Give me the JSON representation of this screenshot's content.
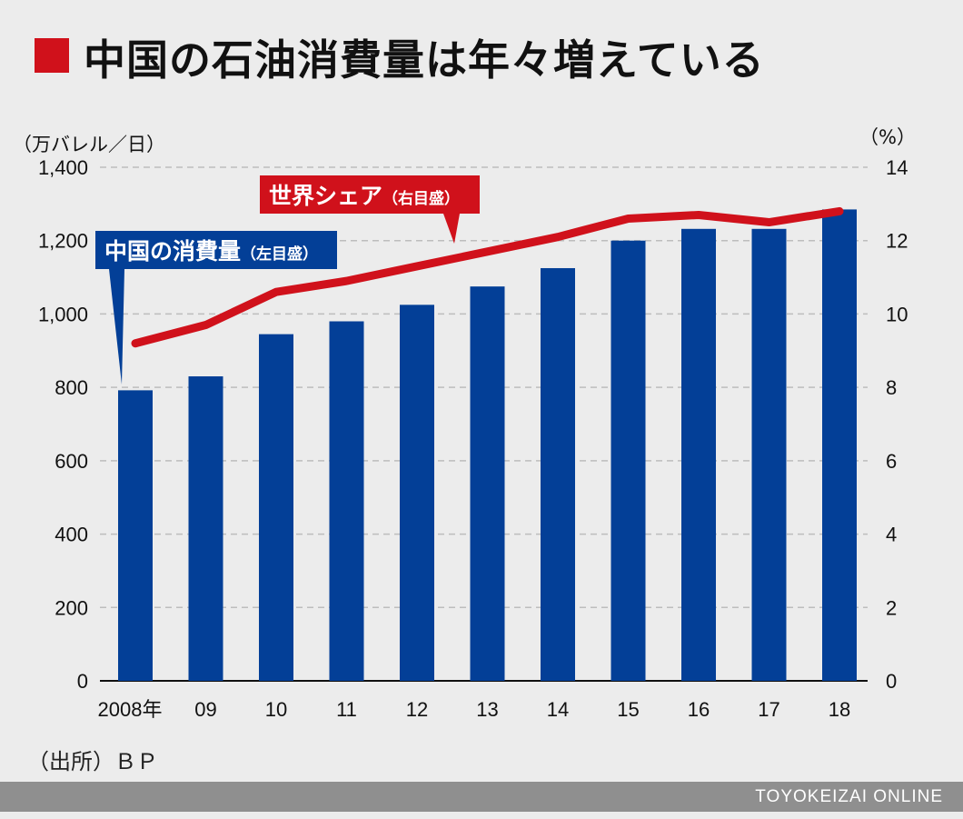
{
  "title": "中国の石油消費量は年々増えている",
  "colors": {
    "bar": "#033f97",
    "line": "#d0111b",
    "title_square": "#d0111b",
    "grid": "#bdbdbd"
  },
  "chart_data": {
    "type": "bar+line",
    "categories": [
      "2008年",
      "09",
      "10",
      "11",
      "12",
      "13",
      "14",
      "15",
      "16",
      "17",
      "18"
    ],
    "left_axis": {
      "unit": "（万バレル／日）",
      "ticks": [
        "0",
        "200",
        "400",
        "600",
        "800",
        "1,000",
        "1,200",
        "1,400"
      ],
      "range": [
        0,
        1400
      ]
    },
    "right_axis": {
      "unit": "（%）",
      "ticks": [
        "0",
        "2",
        "4",
        "6",
        "8",
        "10",
        "12",
        "14"
      ],
      "range": [
        0,
        14
      ]
    },
    "series": [
      {
        "name": "中国の消費量",
        "axis_note": "（左目盛）",
        "type": "bar",
        "axis": "left",
        "values": [
          792,
          830,
          945,
          980,
          1025,
          1075,
          1125,
          1200,
          1232,
          1232,
          1285
        ]
      },
      {
        "name": "世界シェア",
        "axis_note": "（右目盛）",
        "type": "line",
        "axis": "right",
        "values": [
          9.2,
          9.7,
          10.6,
          10.9,
          11.3,
          11.7,
          12.1,
          12.6,
          12.7,
          12.5,
          12.8
        ]
      }
    ],
    "grid": true
  },
  "source": "（出所）ＢＰ",
  "footer": "TOYOKEIZAI ONLINE"
}
